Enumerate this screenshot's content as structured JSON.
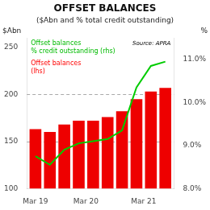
{
  "chart_data": {
    "type": "bar",
    "title": "OFFSET BALANCES",
    "subtitle": "($Abn and % total credit outstanding)",
    "ylabel": "$Abn",
    "y2label": "%",
    "x": [
      0,
      1,
      2,
      3,
      4,
      5,
      6,
      7,
      8,
      9
    ],
    "series": [
      {
        "type": "bar",
        "color": "#ee0000",
        "values": [
          163,
          160,
          168,
          172,
          172,
          176,
          182,
          195,
          203,
          207
        ]
      },
      {
        "type": "line",
        "color": "#00cc00",
        "axis": "y2",
        "values": [
          8.75,
          8.55,
          8.9,
          9.05,
          9.1,
          9.15,
          9.35,
          10.35,
          10.85,
          10.95
        ]
      }
    ],
    "xlim": [
      -0.6,
      9.6
    ],
    "xticks": [
      {
        "value": 0,
        "label": "Mar 19"
      },
      {
        "value": 3.5,
        "label": "Mar 20"
      },
      {
        "value": 7.5,
        "label": "Mar 21"
      }
    ],
    "ylim": [
      100,
      260
    ],
    "yticks": [
      100,
      150,
      200,
      250
    ],
    "y2lim": [
      8.0,
      11.5
    ],
    "y2ticks": [
      {
        "value": 8.0,
        "label": "8.0%"
      },
      {
        "value": 9.0,
        "label": "9.0%"
      },
      {
        "value": 10.0,
        "label": "10.0%"
      },
      {
        "value": 11.0,
        "label": "11.0%"
      }
    ],
    "hlines": [
      150,
      200
    ],
    "grid": false,
    "annotations": [
      {
        "text": "Offset balances\n% credit outstanding (rhs)",
        "color": "#00bb00"
      },
      {
        "text": "Offset balances\n(lhs)",
        "color": "red"
      },
      {
        "text": "Source: APRA"
      }
    ]
  }
}
